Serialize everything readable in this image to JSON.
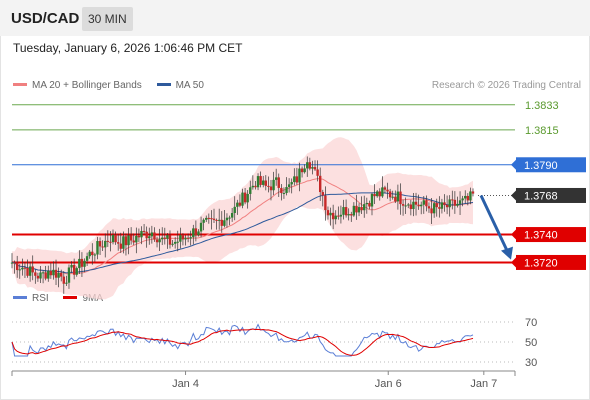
{
  "header": {
    "pair": "USD/CAD",
    "timeframe": "30 MIN"
  },
  "datetime": "Tuesday, January 6, 2026 1:06:46 PM CET",
  "legend_main": [
    {
      "label": "MA 20 + Bollinger Bands",
      "color": "#f08080"
    },
    {
      "label": "MA 50",
      "color": "#2e5a9c"
    }
  ],
  "research_note": "Research © 2026 Trading Central",
  "legend_rsi": [
    {
      "label": "RSI",
      "color": "#5b7fd6"
    },
    {
      "label": "9MA",
      "color": "#e00000"
    }
  ],
  "colors": {
    "candle_up": "#2e7d32",
    "candle_down": "#c62828",
    "band_fill": "#fbd5d5",
    "ma20": "#f08080",
    "ma50": "#2e5a9c",
    "target_arrow": "#2a5fa8"
  },
  "chart_data": {
    "type": "candlestick",
    "ylim": [
      1.3706,
      1.384
    ],
    "rsi_ylim": [
      22,
      80
    ],
    "rsi_levels": [
      70,
      50,
      30
    ],
    "x_ticks": [
      {
        "label": "Jan 4",
        "pos": 0.345
      },
      {
        "label": "Jan 6",
        "pos": 0.748
      },
      {
        "label": "Jan 7",
        "pos": 0.938
      }
    ],
    "levels": [
      {
        "value": 1.3833,
        "label": "1.3833",
        "kind": "resistance-green"
      },
      {
        "value": 1.3815,
        "label": "1.3815",
        "kind": "resistance-green"
      },
      {
        "value": 1.379,
        "label": "1.3790",
        "kind": "pivot"
      },
      {
        "value": 1.3768,
        "label": "1.3768",
        "kind": "last-price"
      },
      {
        "value": 1.374,
        "label": "1.3740",
        "kind": "support"
      },
      {
        "value": 1.372,
        "label": "1.3720",
        "kind": "support"
      }
    ],
    "target": {
      "from": 1.3768,
      "to": 1.3722
    },
    "close_anchors": [
      [
        0,
        1.372
      ],
      [
        5,
        1.3716
      ],
      [
        8,
        1.3712
      ],
      [
        11,
        1.371
      ],
      [
        14,
        1.3714
      ],
      [
        18,
        1.3712
      ],
      [
        20,
        1.3708
      ],
      [
        22,
        1.3712
      ],
      [
        26,
        1.3718
      ],
      [
        30,
        1.3726
      ],
      [
        34,
        1.3732
      ],
      [
        38,
        1.3738
      ],
      [
        42,
        1.3734
      ],
      [
        46,
        1.3736
      ],
      [
        50,
        1.374
      ],
      [
        54,
        1.3742
      ],
      [
        58,
        1.3736
      ],
      [
        62,
        1.3734
      ],
      [
        66,
        1.3737
      ],
      [
        70,
        1.3742
      ],
      [
        74,
        1.3747
      ],
      [
        78,
        1.3748
      ],
      [
        82,
        1.3752
      ],
      [
        86,
        1.3758
      ],
      [
        90,
        1.3768
      ],
      [
        94,
        1.3778
      ],
      [
        98,
        1.3774
      ],
      [
        102,
        1.3777
      ],
      [
        106,
        1.3772
      ],
      [
        110,
        1.378
      ],
      [
        114,
        1.3796
      ],
      [
        116,
        1.3788
      ],
      [
        119,
        1.3774
      ],
      [
        122,
        1.3756
      ],
      [
        125,
        1.3755
      ],
      [
        130,
        1.3758
      ],
      [
        136,
        1.3762
      ],
      [
        140,
        1.3768
      ],
      [
        144,
        1.377
      ],
      [
        148,
        1.3768
      ],
      [
        152,
        1.3764
      ],
      [
        156,
        1.3762
      ],
      [
        160,
        1.376
      ],
      [
        164,
        1.3758
      ],
      [
        168,
        1.376
      ],
      [
        172,
        1.3762
      ],
      [
        176,
        1.3764
      ],
      [
        178,
        1.3768
      ]
    ]
  }
}
